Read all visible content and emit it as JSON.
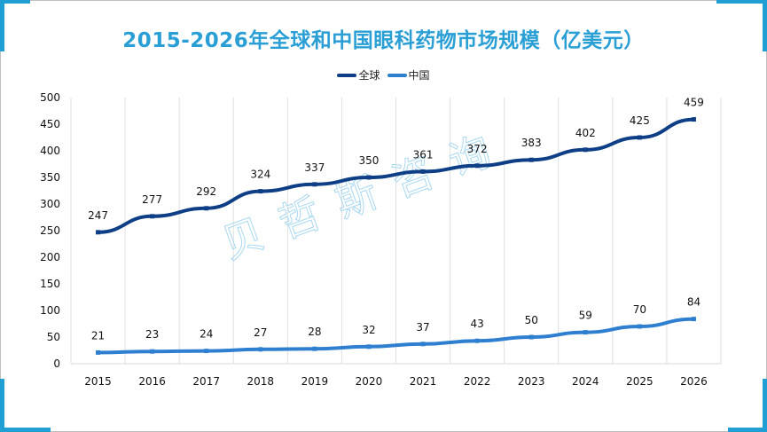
{
  "chart_data": {
    "type": "line",
    "title": "2015-2026年全球和中国眼科药物市场规模（亿美元）",
    "xlabel": "",
    "ylabel": "",
    "categories": [
      "2015",
      "2016",
      "2017",
      "2018",
      "2019",
      "2020",
      "2021",
      "2022",
      "2023",
      "2024",
      "2025",
      "2026"
    ],
    "series": [
      {
        "name": "全球",
        "color": "#0e3f86",
        "values": [
          247,
          277,
          292,
          324,
          337,
          350,
          361,
          372,
          383,
          402,
          425,
          459
        ]
      },
      {
        "name": "中国",
        "color": "#2f7fd1",
        "values": [
          21,
          23,
          24,
          27,
          28,
          32,
          37,
          43,
          50,
          59,
          70,
          84
        ]
      }
    ],
    "ylim": [
      0,
      500
    ],
    "yticks": [
      0,
      50,
      100,
      150,
      200,
      250,
      300,
      350,
      400,
      450,
      500
    ],
    "grid": "vertical",
    "legend_position": "top-center",
    "data_labels": true
  },
  "watermark": "贝哲斯咨询",
  "colors": {
    "accent": "#1f9fd4",
    "title": "#2a9fd6",
    "grid": "#e0e0e0"
  }
}
